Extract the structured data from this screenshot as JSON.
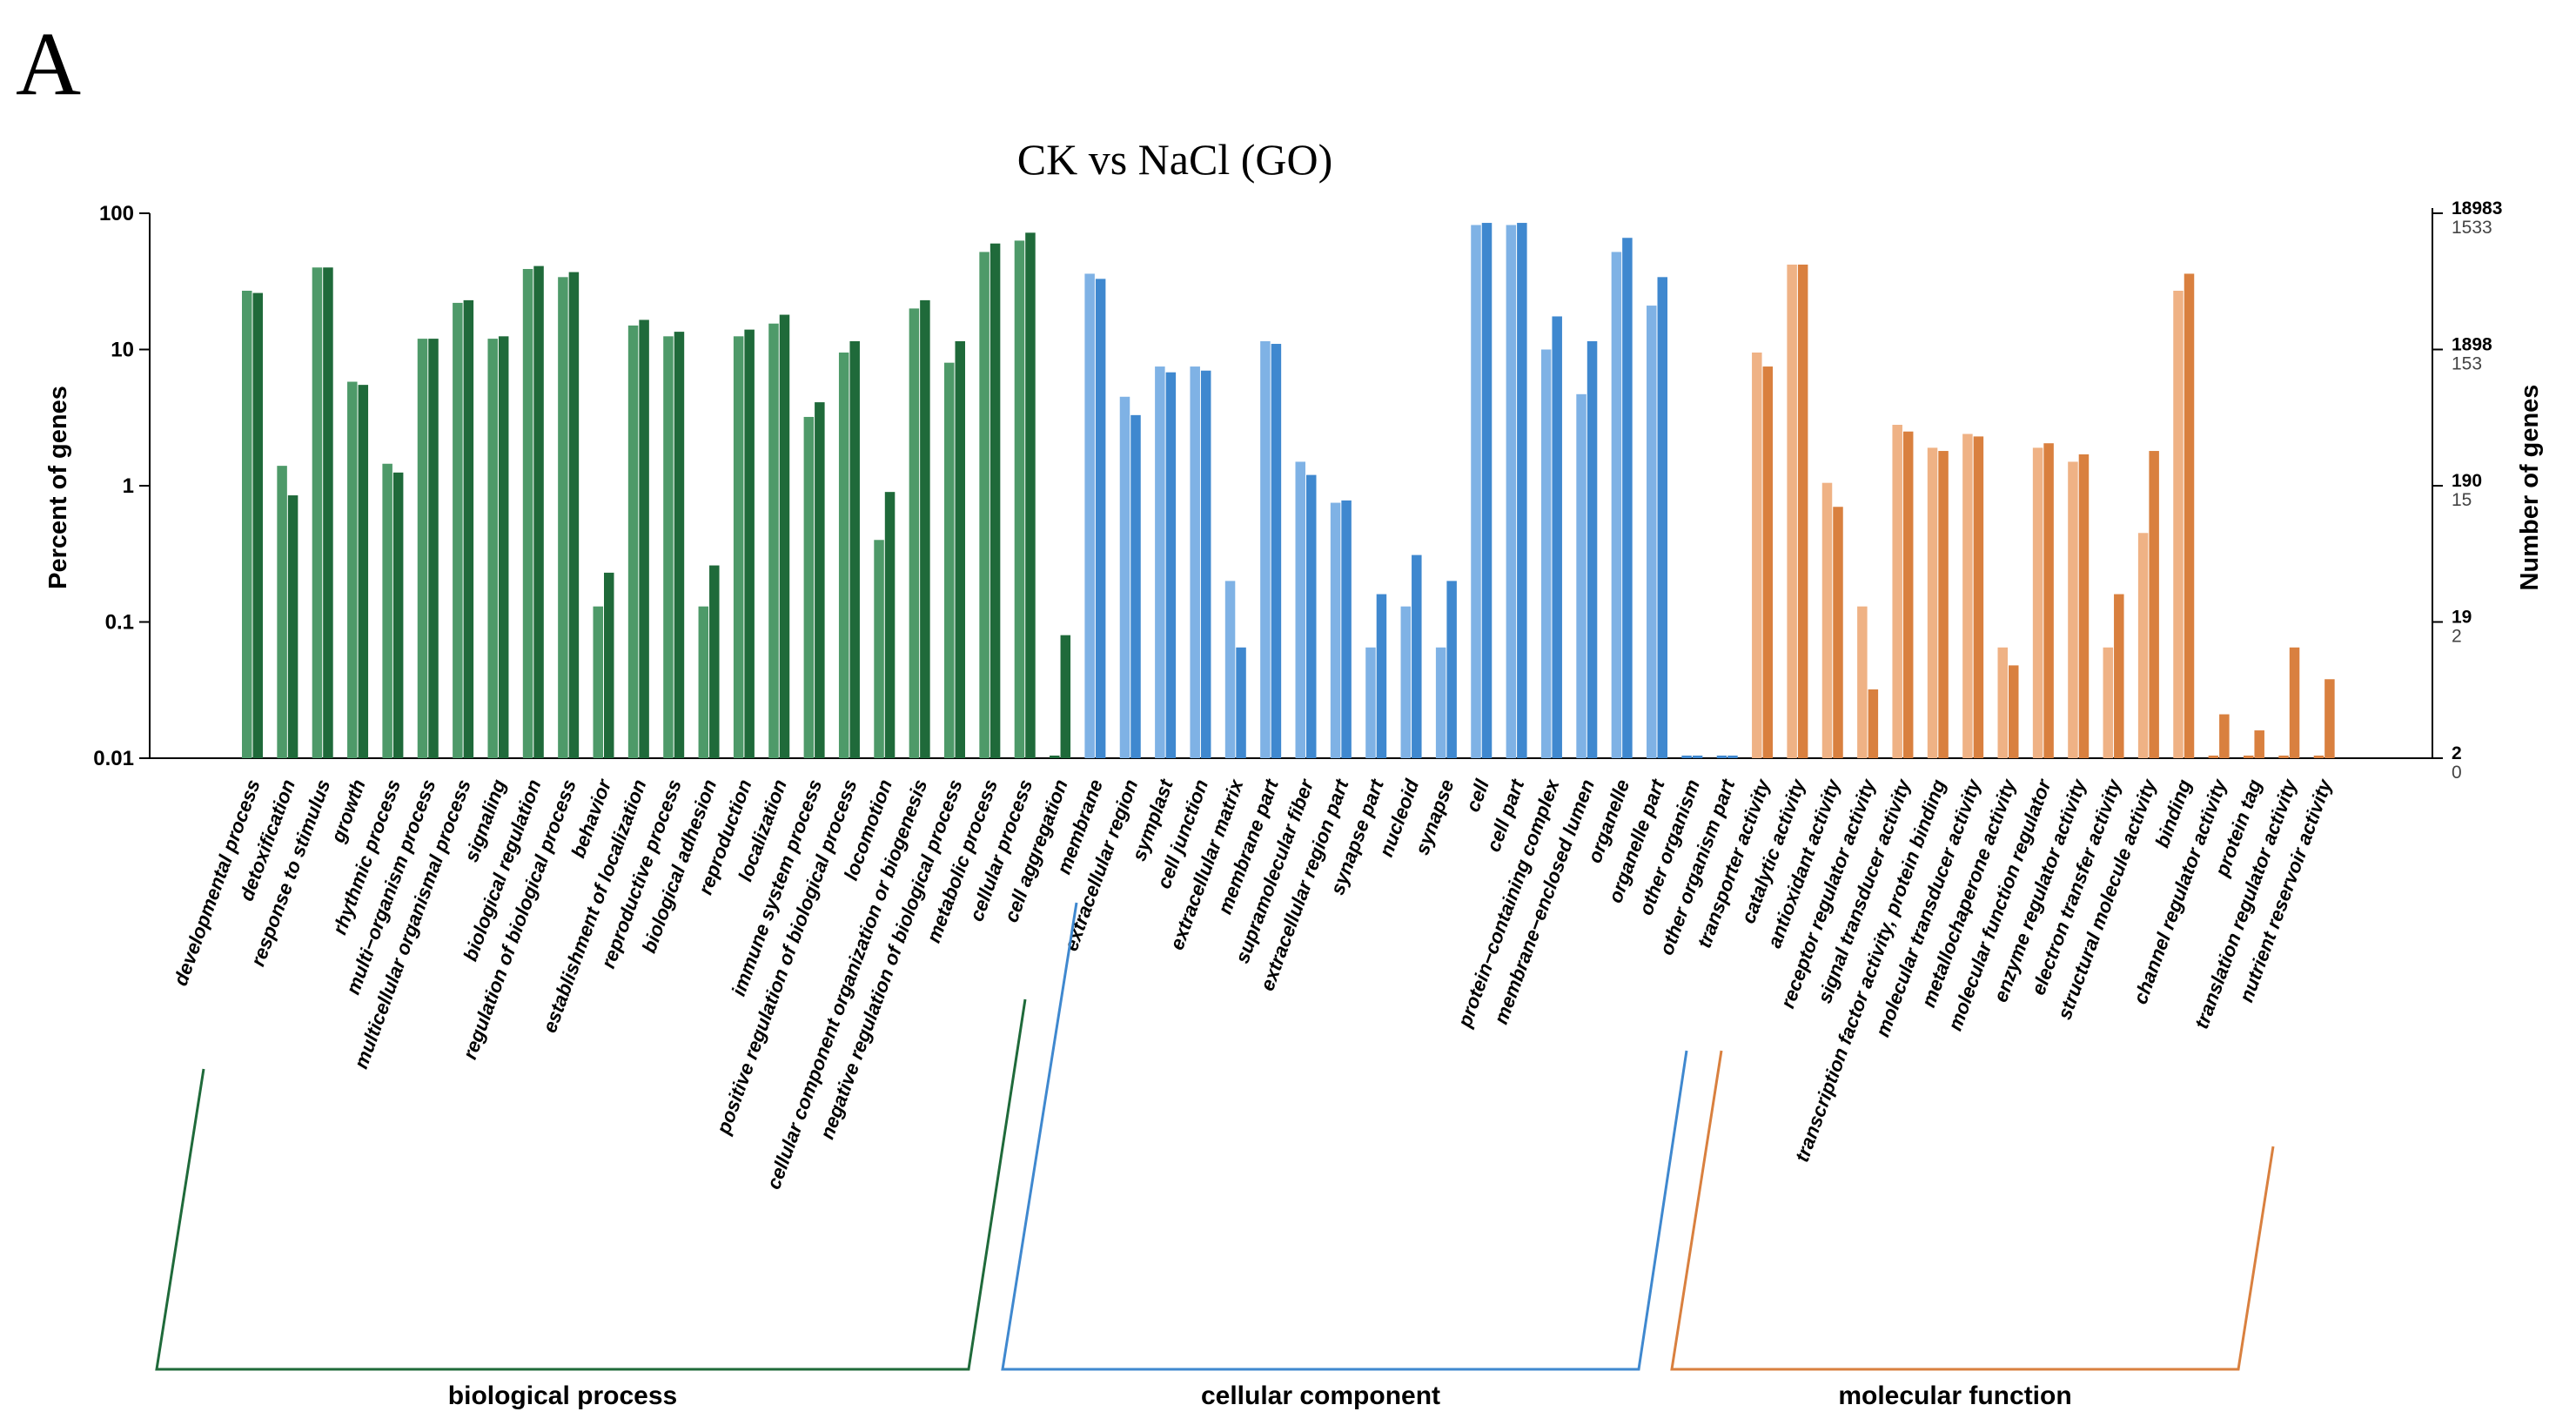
{
  "panel_letter": "A",
  "chart_data": {
    "type": "bar",
    "title": "CK vs NaCl (GO)",
    "ylabel": "Percent of genes",
    "ylabel_right": "Number of genes",
    "yscale": "log",
    "ylim": [
      0.01,
      100
    ],
    "left_ticks": [
      "100",
      "10",
      "1",
      "0.1",
      "0.01"
    ],
    "right_ticks": [
      {
        "upper": "18983",
        "lower": "1533"
      },
      {
        "upper": "1898",
        "lower": "153"
      },
      {
        "upper": "190",
        "lower": "15"
      },
      {
        "upper": "19",
        "lower": "2"
      },
      {
        "upper": "2",
        "lower": "0"
      }
    ],
    "series": [
      {
        "name": "CK",
        "shade": "light"
      },
      {
        "name": "NaCl",
        "shade": "dark"
      }
    ],
    "groups": [
      {
        "name": "biological process",
        "colors": {
          "light": "#4e9a69",
          "dark": "#1f6a3a"
        },
        "categories": [
          "developmental process",
          "detoxification",
          "response to stimulus",
          "growth",
          "rhythmic process",
          "multi−organism process",
          "multicellular organismal process",
          "signaling",
          "biological regulation",
          "regulation of biological process",
          "behavior",
          "establishment of localization",
          "reproductive process",
          "biological adhesion",
          "reproduction",
          "localization",
          "immune system process",
          "positive regulation of biological process",
          "locomotion",
          "cellular component organization or biogenesis",
          "negative regulation of biological process",
          "metabolic process",
          "cellular process",
          "cell aggregation"
        ],
        "values": [
          [
            27,
            26
          ],
          [
            1.4,
            0.85
          ],
          [
            40,
            40
          ],
          [
            5.8,
            5.5
          ],
          [
            1.45,
            1.25
          ],
          [
            12,
            12
          ],
          [
            22,
            23
          ],
          [
            12,
            12.5
          ],
          [
            39,
            41
          ],
          [
            34,
            37
          ],
          [
            0.13,
            0.23
          ],
          [
            15,
            16.5
          ],
          [
            12.5,
            13.5
          ],
          [
            0.13,
            0.26
          ],
          [
            12.5,
            14
          ],
          [
            15.5,
            18
          ],
          [
            3.2,
            4.1
          ],
          [
            9.5,
            11.5
          ],
          [
            0.4,
            0.9
          ],
          [
            20,
            23
          ],
          [
            8,
            11.5
          ],
          [
            52,
            60
          ],
          [
            63,
            72
          ],
          [
            null,
            0.08
          ]
        ]
      },
      {
        "name": "cellular component",
        "colors": {
          "light": "#7fb2e5",
          "dark": "#3f88cf"
        },
        "categories": [
          "membrane",
          "extracellular region",
          "symplast",
          "cell junction",
          "extracellular matrix",
          "membrane part",
          "supramolecular fiber",
          "extracellular region part",
          "synapse part",
          "nucleoid",
          "synapse",
          "cell",
          "cell part",
          "protein−containing complex",
          "membrane−enclosed lumen",
          "organelle",
          "organelle part",
          "other organism",
          "other organism part"
        ],
        "values": [
          [
            36,
            33
          ],
          [
            4.5,
            3.3
          ],
          [
            7.5,
            6.8
          ],
          [
            7.5,
            7
          ],
          [
            0.2,
            0.065
          ],
          [
            11.5,
            11
          ],
          [
            1.5,
            1.2
          ],
          [
            0.75,
            0.78
          ],
          [
            0.065,
            0.16
          ],
          [
            0.13,
            0.31
          ],
          [
            0.065,
            0.2
          ],
          [
            82,
            85
          ],
          [
            82,
            85
          ],
          [
            10,
            17.5
          ],
          [
            4.7,
            11.5
          ],
          [
            52,
            66
          ],
          [
            21,
            34
          ],
          [
            null,
            null
          ],
          [
            null,
            null
          ]
        ]
      },
      {
        "name": "molecular function",
        "colors": {
          "light": "#efb285",
          "dark": "#d9803f"
        },
        "categories": [
          "transporter activity",
          "catalytic activity",
          "antioxidant activity",
          "receptor regulator activity",
          "signal transducer activity",
          "transcription factor activity, protein binding",
          "molecular transducer activity",
          "metallochaperone activity",
          "molecular function regulator",
          "enzyme regulator activity",
          "electron transfer activity",
          "structural molecule activity",
          "binding",
          "channel regulator activity",
          "protein tag",
          "translation regulator activity",
          "nutrient reservoir activity"
        ],
        "values": [
          [
            9.5,
            7.5
          ],
          [
            42,
            42
          ],
          [
            1.05,
            0.7
          ],
          [
            0.13,
            0.032
          ],
          [
            2.8,
            2.5
          ],
          [
            1.9,
            1.8
          ],
          [
            2.4,
            2.3
          ],
          [
            0.065,
            0.048
          ],
          [
            1.9,
            2.05
          ],
          [
            1.5,
            1.7
          ],
          [
            0.065,
            0.16
          ],
          [
            0.45,
            1.8
          ],
          [
            27,
            36
          ],
          [
            null,
            0.021
          ],
          [
            null,
            0.016
          ],
          [
            null,
            0.065
          ],
          [
            null,
            0.038
          ]
        ]
      }
    ]
  }
}
